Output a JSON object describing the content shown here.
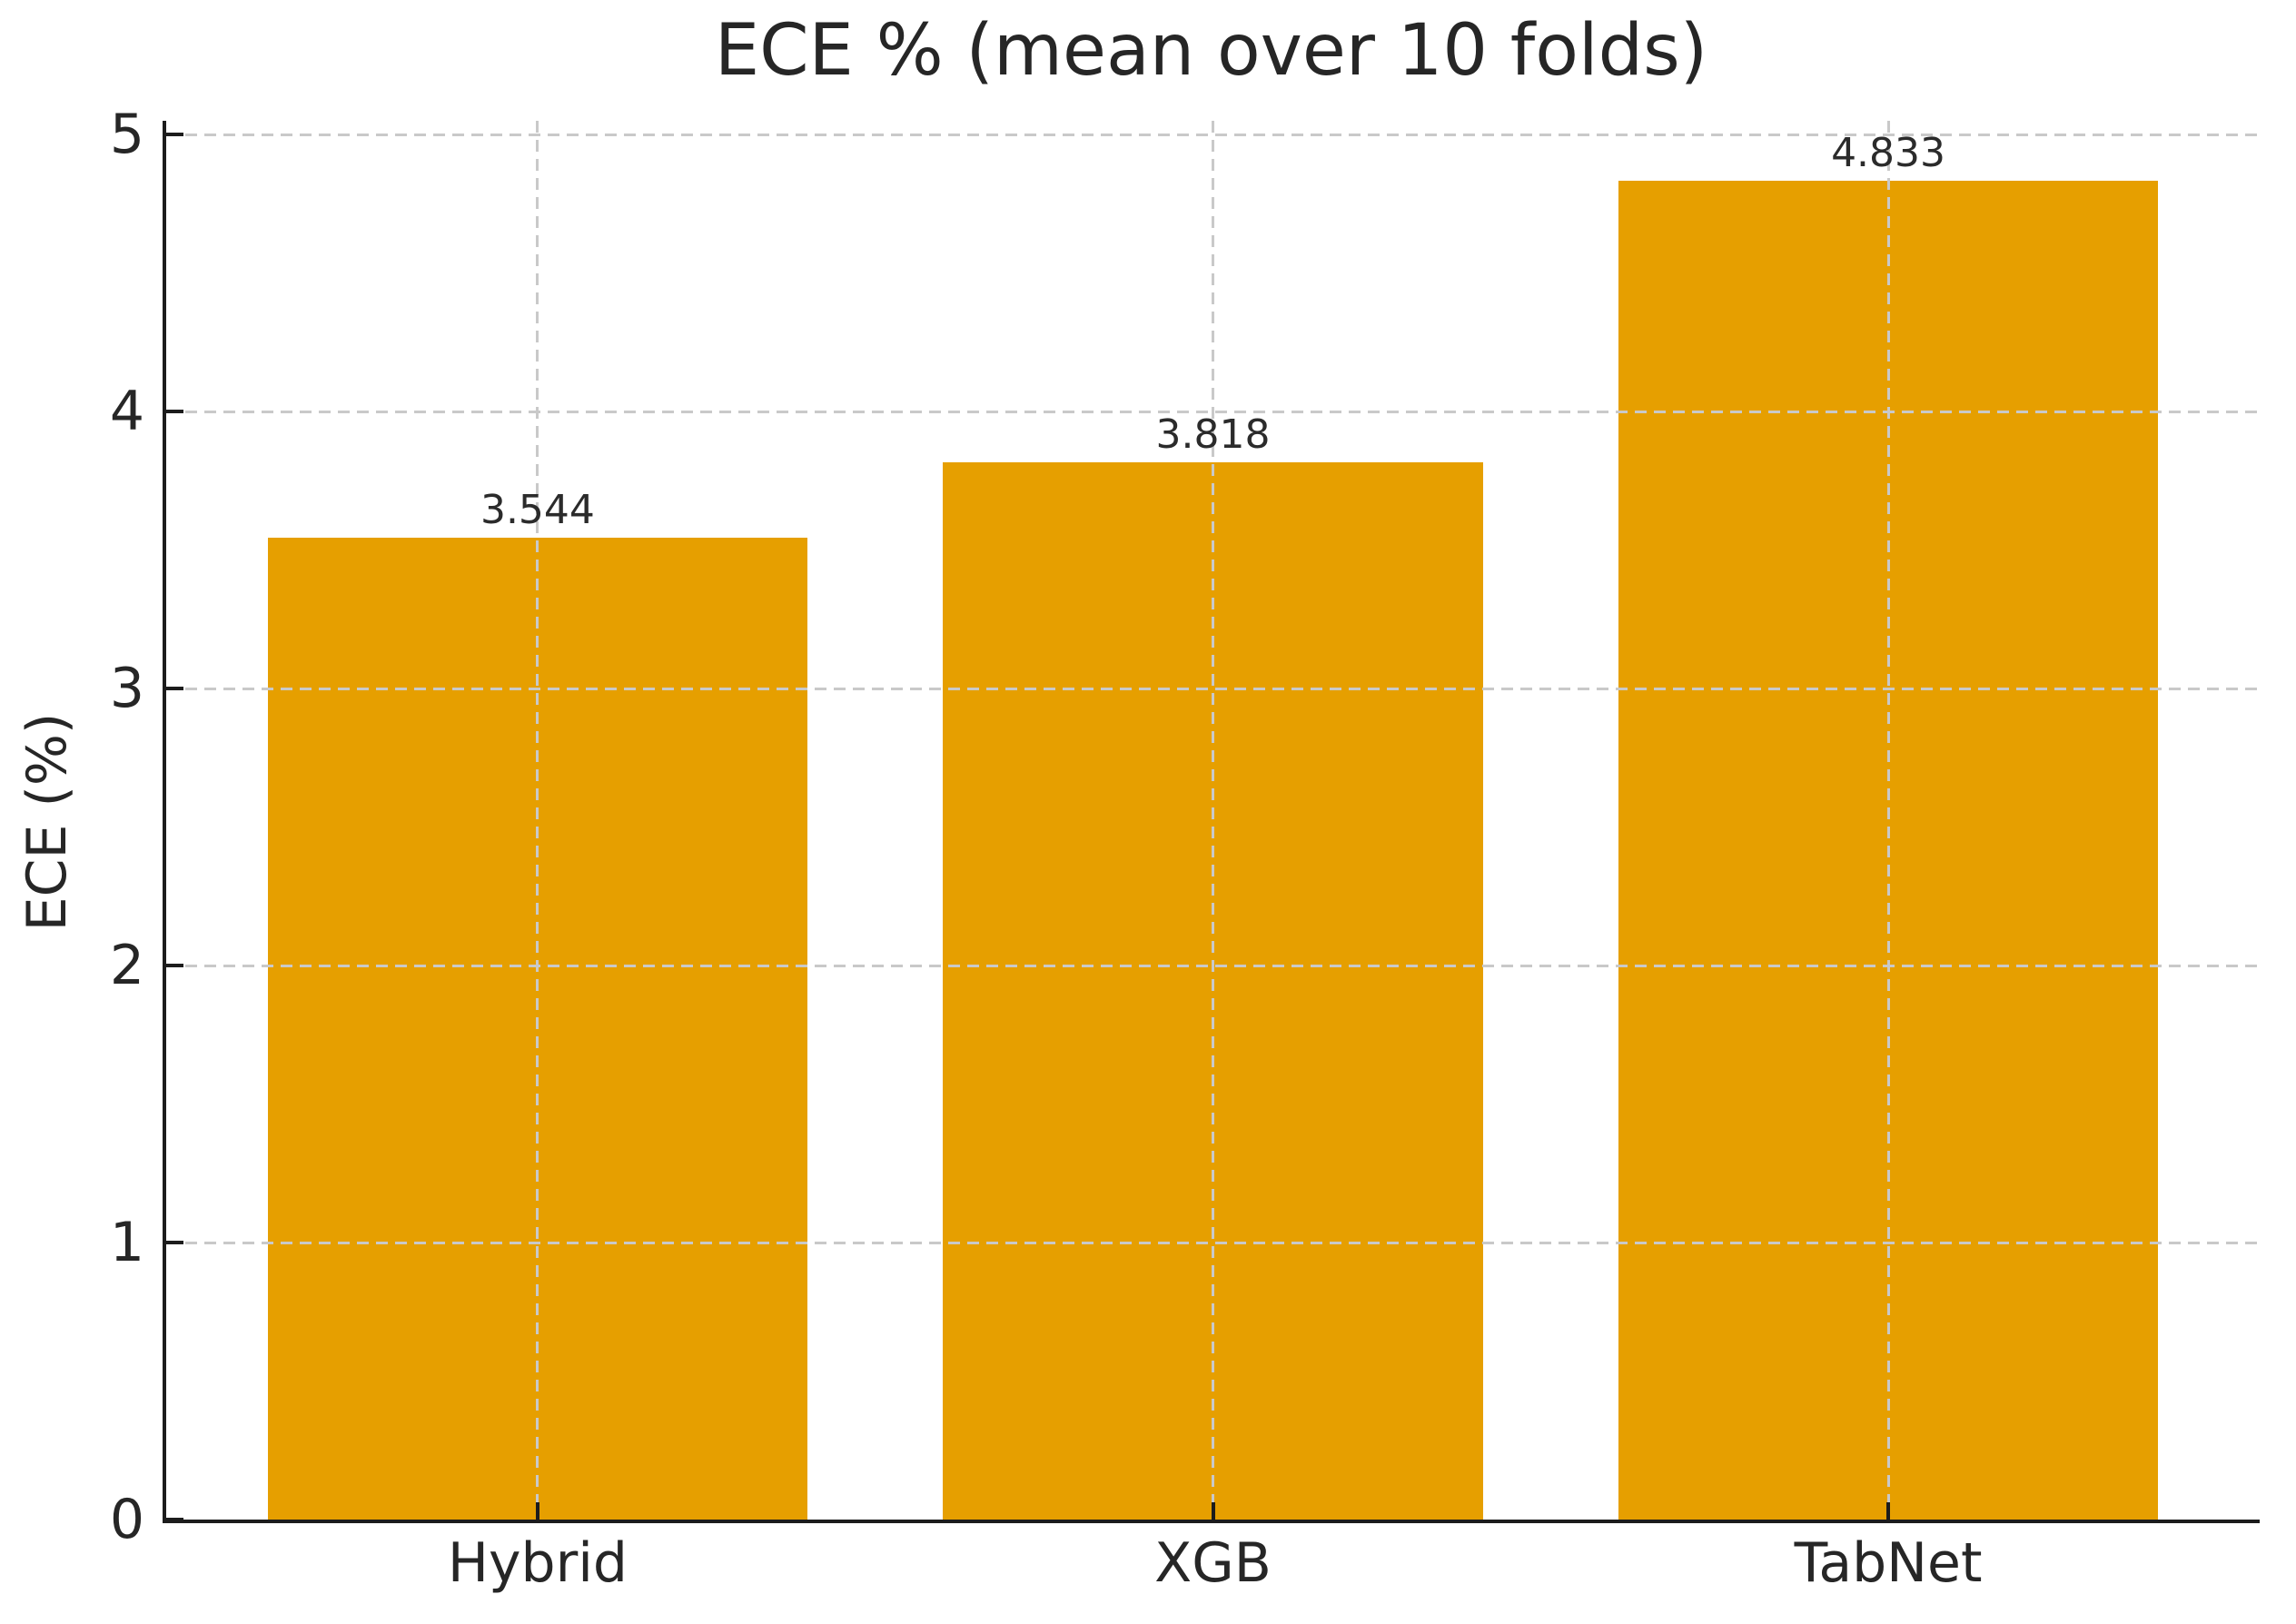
{
  "chart_data": {
    "type": "bar",
    "title": "ECE % (mean over 10 folds)",
    "xlabel": "",
    "ylabel": "ECE (%)",
    "categories": [
      "Hybrid",
      "XGB",
      "TabNet"
    ],
    "values": [
      3.544,
      3.818,
      4.833
    ],
    "data_labels": [
      "3.544",
      "3.818",
      "4.833"
    ],
    "yticks": [
      0,
      1,
      2,
      3,
      4,
      5
    ],
    "ylim": [
      0,
      5.05
    ],
    "grid": {
      "horizontal": true,
      "vertical": true,
      "style": "dashed",
      "color": "#c9c9c9",
      "drawn_above_bars": true
    },
    "legend_position": "none",
    "colors": {
      "bar": "#E69F00",
      "axis": "#1c1c1c",
      "text": "#262626",
      "background": "#ffffff"
    }
  }
}
